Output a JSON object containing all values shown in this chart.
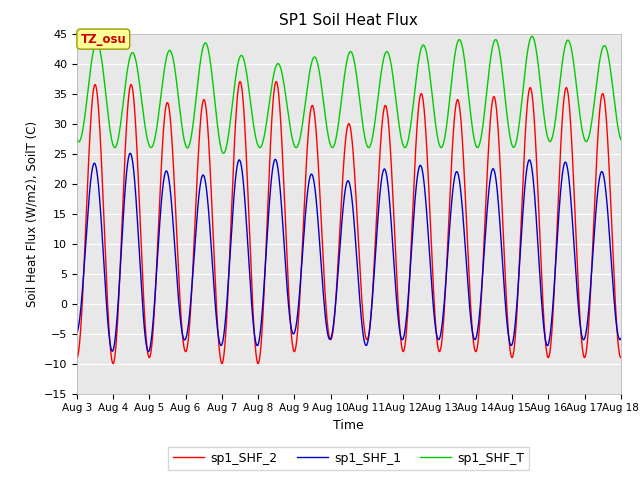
{
  "title": "SP1 Soil Heat Flux",
  "xlabel": "Time",
  "ylabel": "Soil Heat Flux (W/m2), SoilT (C)",
  "ylim": [
    -15,
    45
  ],
  "xlim_days": [
    3,
    18
  ],
  "xtick_labels": [
    "Aug 3",
    "Aug 4",
    "Aug 5",
    "Aug 6",
    "Aug 7",
    "Aug 8",
    "Aug 9",
    "Aug 10",
    "Aug 11",
    "Aug 12",
    "Aug 13",
    "Aug 14",
    "Aug 15",
    "Aug 16",
    "Aug 17",
    "Aug 18"
  ],
  "xtick_positions": [
    3,
    4,
    5,
    6,
    7,
    8,
    9,
    10,
    11,
    12,
    13,
    14,
    15,
    16,
    17,
    18
  ],
  "color_shf2": "#FF0000",
  "color_shf1": "#0000CC",
  "color_shft": "#00CC00",
  "label_shf2": "sp1_SHF_2",
  "label_shf1": "sp1_SHF_1",
  "label_shft": "sp1_SHF_T",
  "tz_label": "TZ_osu",
  "bg_color": "#E8E8E8",
  "fig_bg": "#FFFFFF",
  "grid_color": "#FFFFFF",
  "annotation_bg": "#FFFF99",
  "annotation_color": "#CC0000",
  "shf2_amps": [
    22,
    24,
    22,
    20,
    23,
    24,
    22,
    18,
    18,
    22,
    21,
    21,
    22,
    23,
    22
  ],
  "shf2_offsets": [
    13,
    14,
    13,
    12,
    13,
    14,
    14,
    12,
    12,
    14,
    13,
    13,
    13,
    14,
    13
  ],
  "shf1_amps": [
    13,
    17,
    16,
    13,
    15,
    16,
    14,
    13,
    14,
    15,
    14,
    14,
    15,
    16,
    14
  ],
  "shf1_offsets": [
    8,
    9,
    8,
    7,
    8,
    9,
    9,
    7,
    7,
    9,
    8,
    8,
    8,
    9,
    8
  ],
  "shft_amps": [
    8,
    9,
    7,
    9,
    9,
    7,
    7,
    8,
    8,
    8,
    9,
    9,
    9,
    9,
    8
  ],
  "shft_offsets": [
    35,
    35,
    33,
    35,
    34,
    33,
    33,
    34,
    34,
    34,
    35,
    35,
    35,
    36,
    35
  ]
}
